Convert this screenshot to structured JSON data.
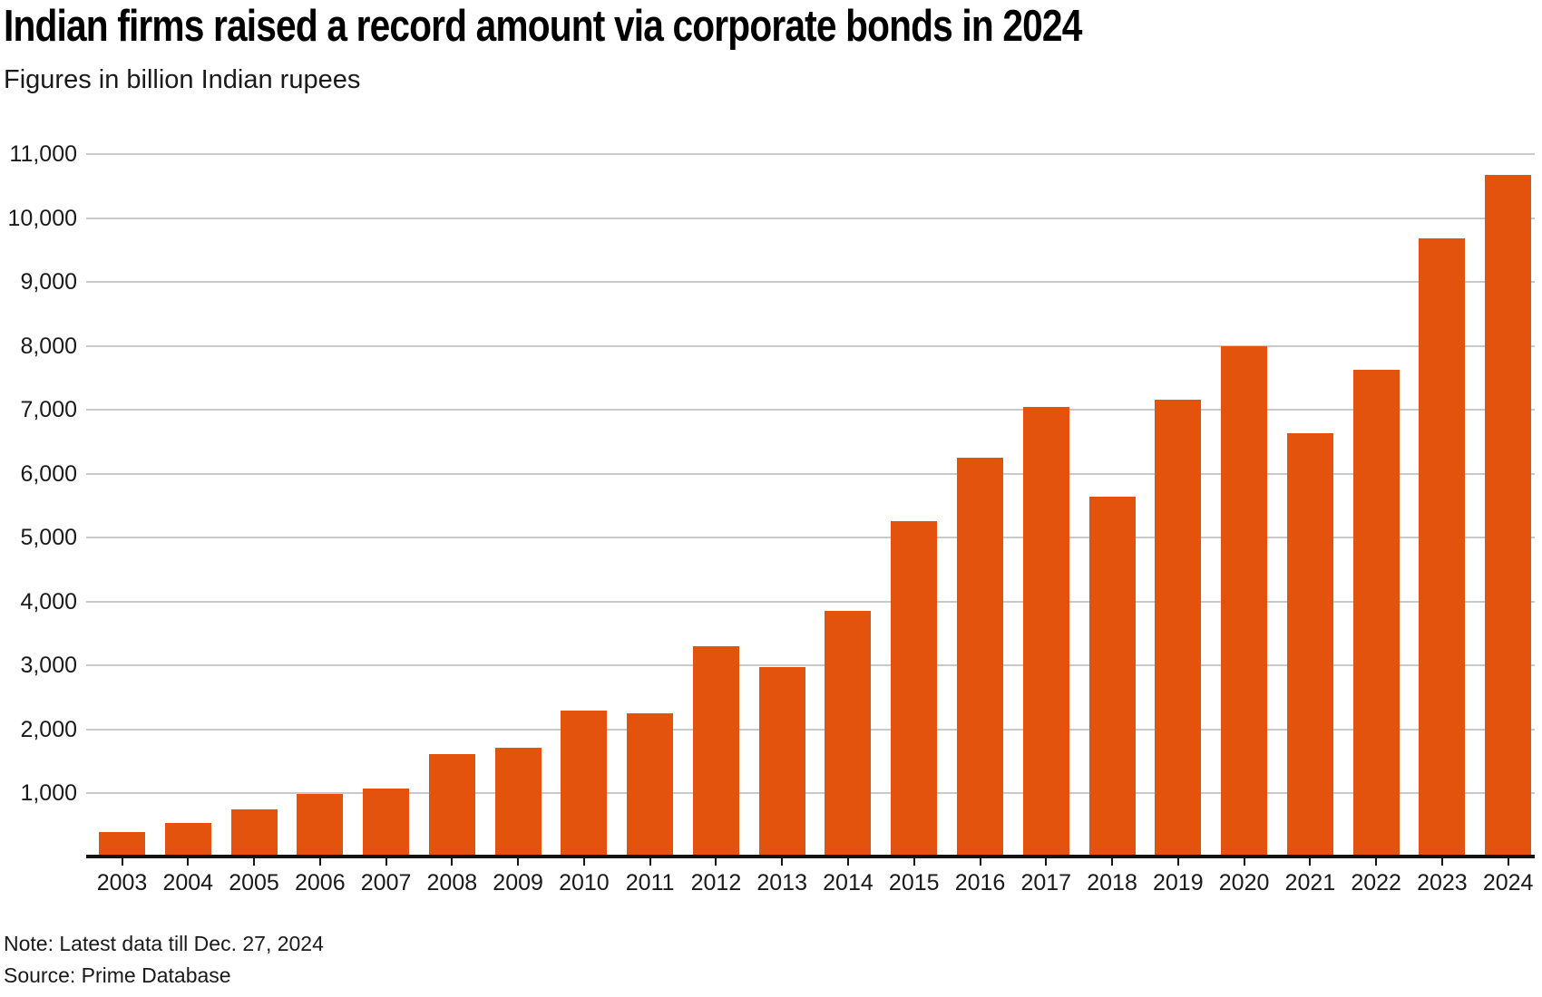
{
  "header": {
    "title": "Indian firms raised a record amount via corporate bonds in 2024",
    "subtitle": "Figures in billion Indian rupees"
  },
  "footer": {
    "note": "Note: Latest data till Dec. 27, 2024",
    "source": "Source: Prime Database"
  },
  "colors": {
    "bar": "#e4530d",
    "gridline": "#c9c9c9",
    "axis": "#141414",
    "text": "#1a1a1a"
  },
  "chart_data": {
    "type": "bar",
    "title": "Indian firms raised a record amount via corporate bonds in 2024",
    "unit_label": "Figures in billion Indian rupees",
    "categories": [
      2003,
      2004,
      2005,
      2006,
      2007,
      2008,
      2009,
      2010,
      2011,
      2012,
      2013,
      2014,
      2015,
      2016,
      2017,
      2018,
      2019,
      2020,
      2021,
      2022,
      2023,
      2024
    ],
    "values": [
      400,
      540,
      750,
      990,
      1080,
      1620,
      1720,
      2290,
      2260,
      3300,
      2980,
      3860,
      5260,
      6250,
      7040,
      5640,
      7160,
      7990,
      6630,
      7630,
      9680,
      10670
    ],
    "xlabel": "",
    "ylabel": "",
    "ylim": [
      0,
      11000
    ],
    "ytick_interval": 1000,
    "ytick_values": [
      1000,
      2000,
      3000,
      4000,
      5000,
      6000,
      7000,
      8000,
      9000,
      10000,
      11000
    ],
    "grid": "horizontal-only",
    "legend": "none",
    "bar_color": "#e4530d",
    "note": "Note: Latest data till Dec. 27, 2024",
    "source": "Source: Prime Database"
  }
}
